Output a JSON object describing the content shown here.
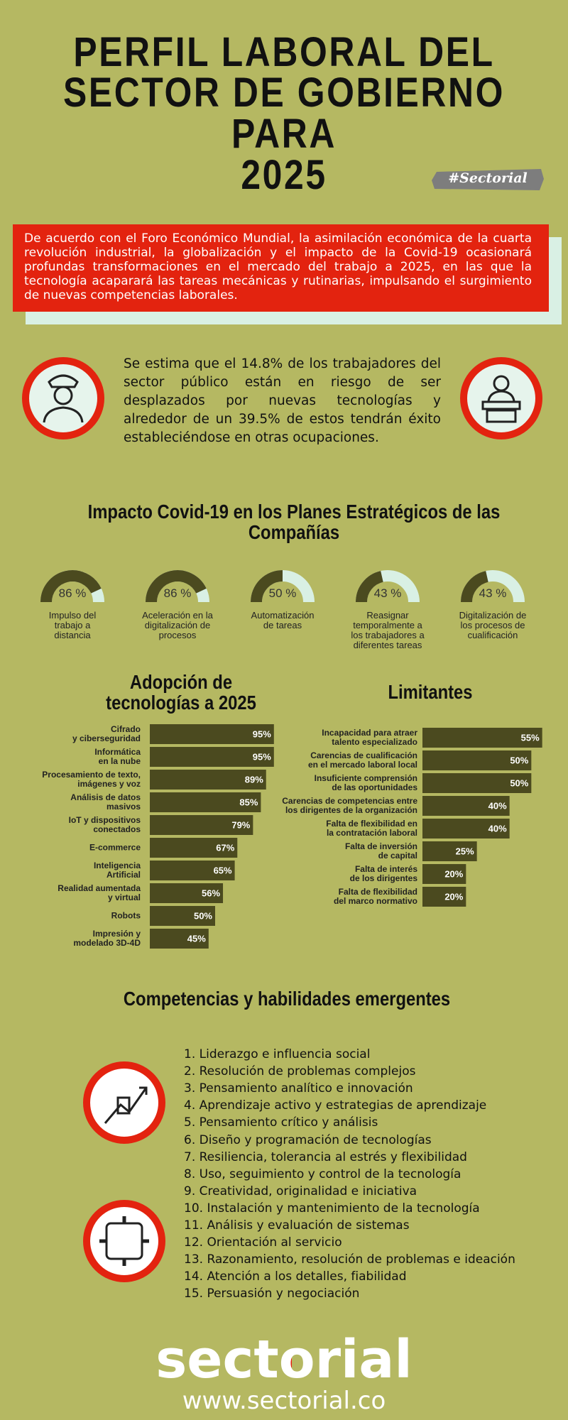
{
  "header": {
    "title_lines": [
      "PERFIL LABORAL DEL",
      "SECTOR DE GOBIERNO",
      "PARA",
      "2025"
    ],
    "tag": "#Sectorial"
  },
  "intro": "De acuerdo con el Foro Económico Mundial, la asimilación económica de la cuarta revolución industrial, la globalización y el impacto de la Covid-19 ocasionará profundas transformaciones en el mercado del trabajo a 2025, en las que la tecnología acaparará las tareas mecánicas y rutinarias, impulsando el surgimiento de nuevas competencias laborales.",
  "estimate": "Se estima que el 14.8% de los trabajadores del sector público están en riesgo de ser desplazados por nuevas tecnologías y alrededor de un 39.5% de estos tendrán éxito estableciéndose en otras ocupaciones.",
  "chart_data": [
    {
      "type": "gauge",
      "title": "Impacto Covid-19 en los Planes Estratégicos de las Compañías",
      "categories": [
        "Impulso del\ntrabajo a\ndistancia",
        "Aceleración en la\ndigitalización de\nprocesos",
        "Automatización\nde tareas",
        "Reasignar\ntemporalmente a\nlos trabajadores a\ndiferentes tareas",
        "Digitalización de\nlos procesos de\ncualificación"
      ],
      "values": [
        86,
        86,
        50,
        43,
        43
      ],
      "value_labels": [
        "86 %",
        "86 %",
        "50 %",
        "43 %",
        "43 %"
      ],
      "ylim": [
        0,
        100
      ],
      "color": "#4b4a1f",
      "track_color": "#d9f0e4"
    },
    {
      "type": "hbar",
      "title": "Adopción de\ntecnologías a 2025",
      "categories": [
        "Cifrado\ny ciberseguridad",
        "Informática\nen la nube",
        "Procesamiento de texto,\nimágenes y voz",
        "Análisis de datos\nmasivos",
        "IoT y dispositivos\nconectados",
        "E-commerce",
        "Inteligencia\nArtificial",
        "Realidad aumentada\ny virtual",
        "Robots",
        "Impresión y\nmodelado 3D-4D"
      ],
      "values": [
        95,
        95,
        89,
        85,
        79,
        67,
        65,
        56,
        50,
        45
      ],
      "value_labels": [
        "95%",
        "95%",
        "89%",
        "85%",
        "79%",
        "67%",
        "65%",
        "56%",
        "50%",
        "45%"
      ],
      "xlim": [
        0,
        100
      ],
      "color": "#4b4a1f"
    },
    {
      "type": "hbar",
      "title": "Limitantes",
      "categories": [
        "Incapacidad para atraer\ntalento especializado",
        "Carencias de cualificación\nen el mercado laboral local",
        "Insuficiente comprensión\nde las oportunidades",
        "Carencias de competencias entre\nlos dirigentes de la organización",
        "Falta de flexibilidad en\nla contratación laboral",
        "Falta de inversión\nde capital",
        "Falta de interés\nde los dirigentes",
        "Falta de flexibilidad\ndel marco normativo"
      ],
      "values": [
        55,
        50,
        50,
        40,
        40,
        25,
        20,
        20
      ],
      "value_labels": [
        "55%",
        "50%",
        "50%",
        "40%",
        "40%",
        "25%",
        "20%",
        "20%"
      ],
      "xlim": [
        0,
        60
      ],
      "color": "#4b4a1f"
    }
  ],
  "competencies": {
    "title": "Competencias y habilidades emergentes",
    "items": [
      "1. Liderazgo e influencia social",
      "2. Resolución de problemas complejos",
      "3. Pensamiento analítico e innovación",
      "4. Aprendizaje activo y estrategias de aprendizaje",
      "5. Pensamiento crítico y análisis",
      "6. Diseño y programación de tecnologías",
      "7. Resiliencia, tolerancia al estrés y flexibilidad",
      "8. Uso, seguimiento y control de la tecnología",
      "9. Creatividad, originalidad e iniciativa",
      "10. Instalación y mantenimiento de la tecnología",
      "11. Análisis y evaluación de sistemas",
      "12. Orientación al servicio",
      "13. Razonamiento, resolución de problemas e ideación",
      "14. Atención a los detalles, fiabilidad",
      "15. Persuasión y negociación"
    ]
  },
  "footer": {
    "brand": "sectorial",
    "url": "www.sectorial.co"
  }
}
